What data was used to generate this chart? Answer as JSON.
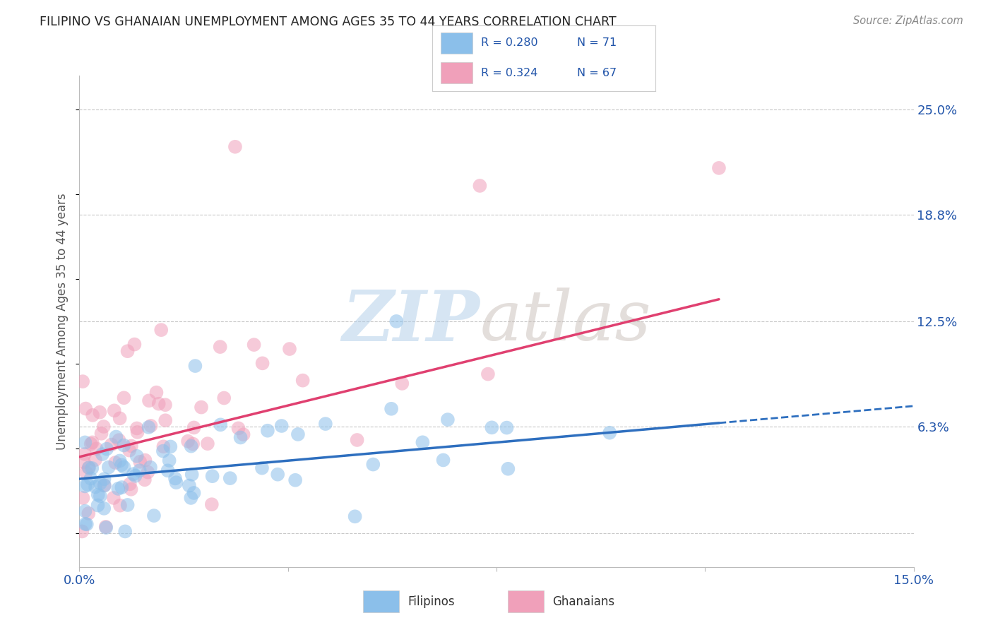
{
  "title": "FILIPINO VS GHANAIAN UNEMPLOYMENT AMONG AGES 35 TO 44 YEARS CORRELATION CHART",
  "source": "Source: ZipAtlas.com",
  "ylabel": "Unemployment Among Ages 35 to 44 years",
  "xlim": [
    0.0,
    0.15
  ],
  "ylim": [
    -0.02,
    0.27
  ],
  "xticks": [
    0.0,
    0.0375,
    0.075,
    0.1125,
    0.15
  ],
  "xticklabels": [
    "0.0%",
    "",
    "",
    "",
    "15.0%"
  ],
  "ytick_positions": [
    0.0,
    0.063,
    0.125,
    0.188,
    0.25
  ],
  "yticklabels": [
    "",
    "6.3%",
    "12.5%",
    "18.8%",
    "25.0%"
  ],
  "filipino_R": 0.28,
  "filipino_N": 71,
  "ghanaian_R": 0.324,
  "ghanaian_N": 67,
  "filipino_color": "#8BBFEA",
  "ghanaian_color": "#F0A0BA",
  "filipino_line_color": "#2E6FBF",
  "ghanaian_line_color": "#E04070",
  "grid_color": "#C8C8C8",
  "background_color": "#FFFFFF",
  "fil_line_x0": 0.0,
  "fil_line_y0": 0.032,
  "fil_line_x1": 0.115,
  "fil_line_y1": 0.065,
  "fil_line_x2": 0.15,
  "fil_line_y2": 0.075,
  "gha_line_x0": 0.0,
  "gha_line_y0": 0.045,
  "gha_line_x1": 0.115,
  "gha_line_y1": 0.138
}
